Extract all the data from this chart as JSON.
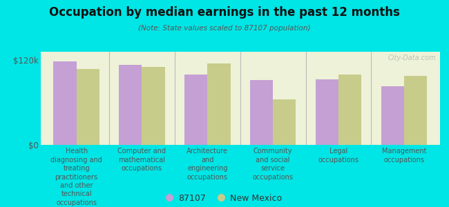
{
  "title": "Occupation by median earnings in the past 12 months",
  "subtitle": "(Note: State values scaled to 87107 population)",
  "background_color": "#00e5e5",
  "plot_bg_color": "#eef2d8",
  "bar_color_87107": "#c4a0d4",
  "bar_color_nm": "#c8cc8a",
  "ytick_labels": [
    "$0",
    "$120k"
  ],
  "ytick_values": [
    0,
    120000
  ],
  "categories": [
    "Health\ndiagnosing and\ntreating\npractitioners\nand other\ntechnical\noccupations",
    "Computer and\nmathematical\noccupations",
    "Architecture\nand\nengineering\noccupations",
    "Community\nand social\nservice\noccupations",
    "Legal\noccupations",
    "Management\noccupations"
  ],
  "values_87107": [
    118000,
    113000,
    100000,
    92000,
    93000,
    83000
  ],
  "values_nm": [
    108000,
    110000,
    115000,
    65000,
    100000,
    98000
  ],
  "legend_label_1": "87107",
  "legend_label_2": "New Mexico",
  "ylim": [
    0,
    132000
  ],
  "watermark": "City-Data.com"
}
